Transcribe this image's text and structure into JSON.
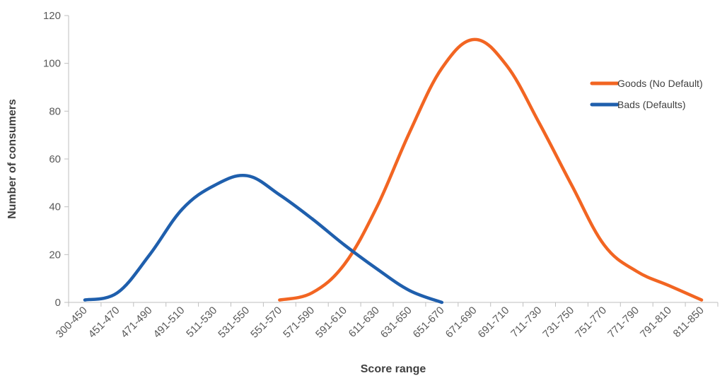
{
  "chart_data": {
    "type": "line",
    "title": "",
    "xlabel": "Score range",
    "ylabel": "Number of consumers",
    "categories": [
      "300-450",
      "451-470",
      "471-490",
      "491-510",
      "511-530",
      "531-550",
      "551-570",
      "571-590",
      "591-610",
      "611-630",
      "631-650",
      "651-670",
      "671-690",
      "691-710",
      "711-730",
      "731-750",
      "751-770",
      "771-790",
      "791-810",
      "811-850"
    ],
    "ylim": [
      0,
      120
    ],
    "yticks": [
      0,
      20,
      40,
      60,
      80,
      100,
      120
    ],
    "grid": false,
    "legend_position": "right",
    "series": [
      {
        "name": "Goods (No Default)",
        "color": "#f26522",
        "values": [
          null,
          null,
          null,
          null,
          null,
          null,
          1,
          4,
          16,
          40,
          71,
          98,
          110,
          99,
          75,
          49,
          24,
          13,
          7,
          1
        ]
      },
      {
        "name": "Bads (Defaults)",
        "color": "#1f5fad",
        "values": [
          1,
          4,
          20,
          39,
          49,
          53,
          45,
          35,
          24,
          14,
          5,
          0,
          null,
          null,
          null,
          null,
          null,
          null,
          null,
          null
        ]
      }
    ]
  }
}
